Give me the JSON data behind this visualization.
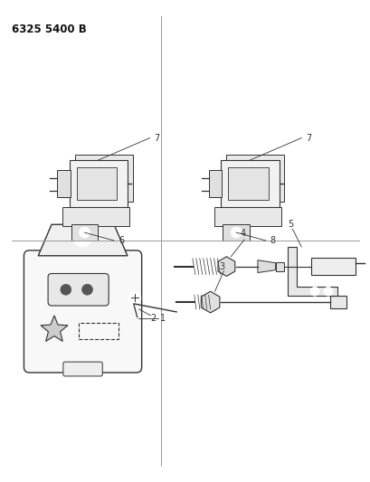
{
  "title": "6325 5400 B",
  "background_color": "#ffffff",
  "line_color": "#333333",
  "divider_color": "#888888",
  "fig_width": 4.1,
  "fig_height": 5.33,
  "dpi": 100
}
